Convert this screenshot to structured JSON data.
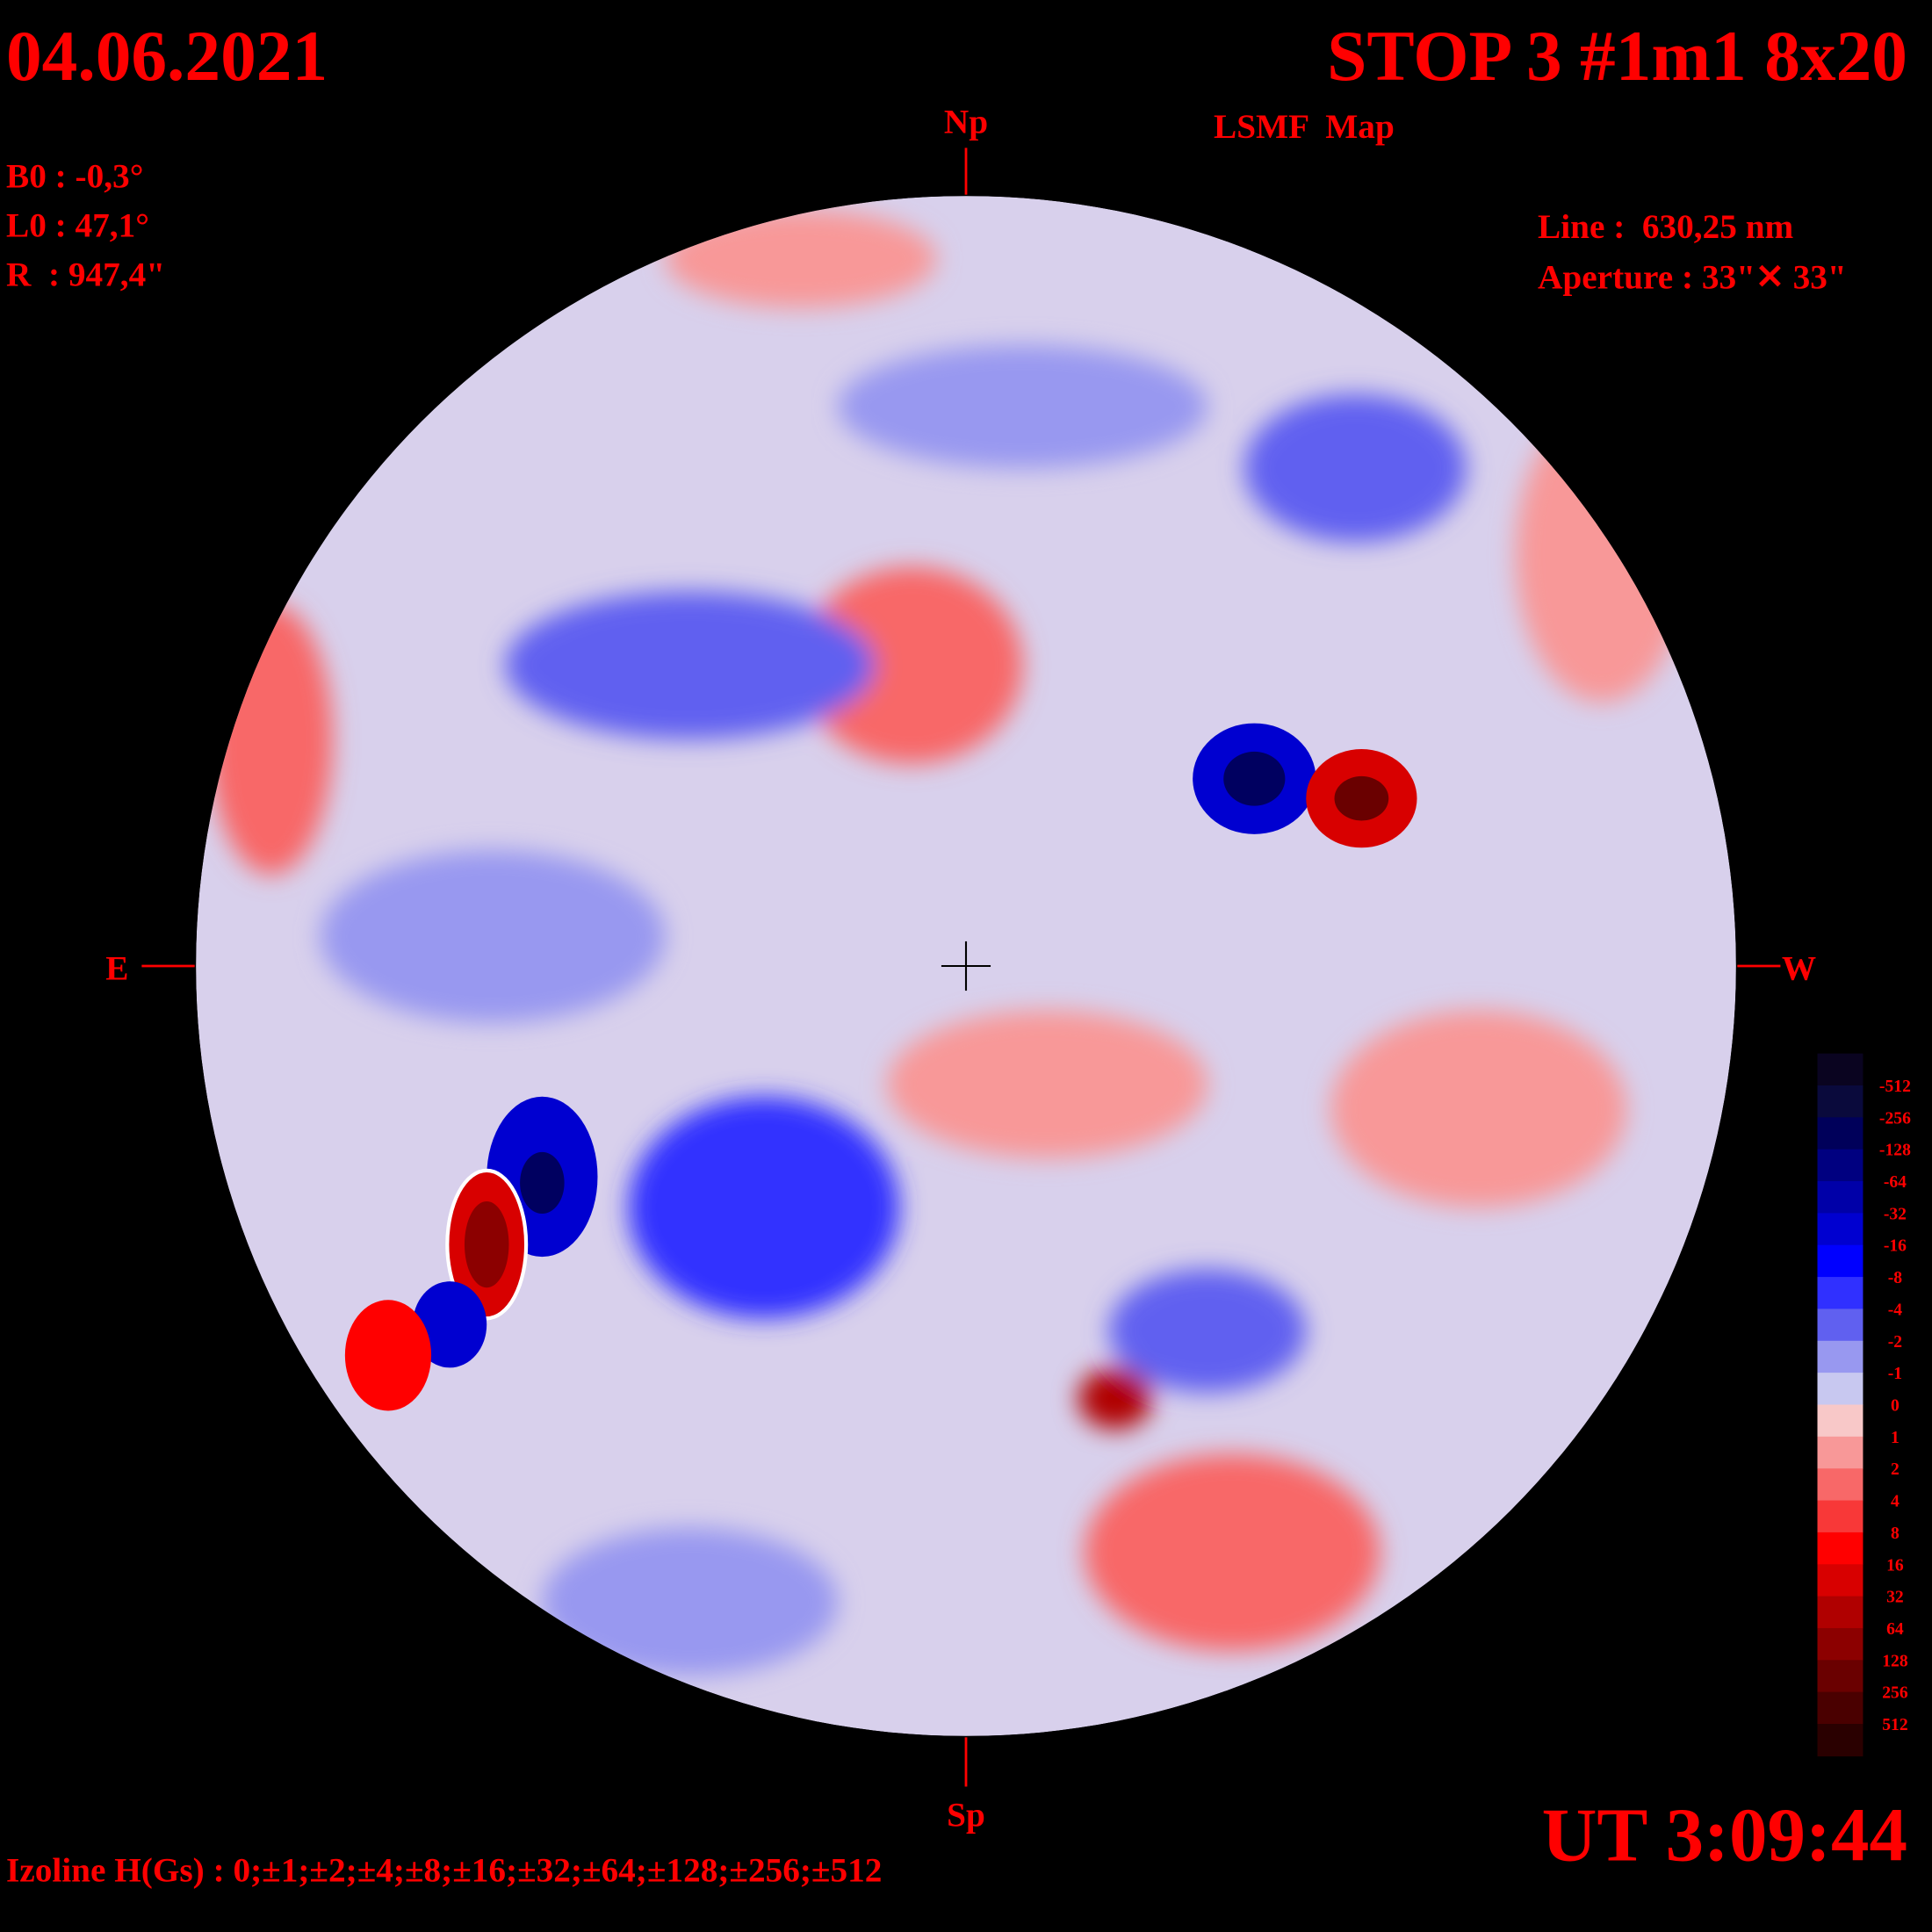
{
  "header": {
    "date": "04.06.2021",
    "title": "STOP 3 #1m1 8x20",
    "subtitle": "LSMF  Map",
    "ut": "UT 3:09:44"
  },
  "parameters": {
    "b0": "B0 : -0,3°",
    "l0": "L0 : 47,1°",
    "r": "R  : 947,4\""
  },
  "instrument": {
    "line": "Line :  630,25 nm",
    "aperture": "Aperture : 33\"✕ 33\""
  },
  "directions": {
    "north": "Np",
    "south": "Sp",
    "east": "E",
    "west": "W"
  },
  "colorbar": {
    "labels": [
      -512,
      -256,
      -128,
      -64,
      -32,
      -16,
      -8,
      -4,
      -2,
      -1,
      0,
      1,
      2,
      4,
      8,
      16,
      32,
      64,
      128,
      256,
      512
    ],
    "colors": [
      "#0a0420",
      "#0a0a3c",
      "#00005a",
      "#000080",
      "#0000a8",
      "#0000d0",
      "#0000ff",
      "#3030ff",
      "#6060f0",
      "#9898f0",
      "#c8c8f0",
      "#f8c8c8",
      "#f89898",
      "#f86868",
      "#f83838",
      "#ff0000",
      "#d80000",
      "#b00000",
      "#8c0000",
      "#6a0000",
      "#4a0000",
      "#2a0000"
    ]
  },
  "footer": {
    "izoline": "Izoline H(Gs) : 0;±1;±2;±4;±8;±16;±32;±64;±128;±256;±512"
  }
}
